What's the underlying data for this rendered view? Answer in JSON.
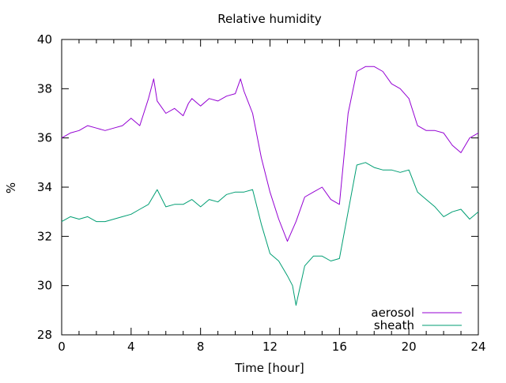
{
  "chart_data": {
    "type": "line",
    "title": "Relative humidity",
    "xlabel": "Time [hour]",
    "ylabel": "%",
    "xlim": [
      0,
      24
    ],
    "ylim": [
      28,
      40
    ],
    "x_ticks": [
      0,
      4,
      8,
      12,
      16,
      20,
      24
    ],
    "y_ticks": [
      28,
      30,
      32,
      34,
      36,
      38,
      40
    ],
    "x_tick_labels": [
      "0",
      "4",
      "8",
      "12",
      "16",
      "20",
      "24"
    ],
    "y_tick_labels": [
      "28",
      "30",
      "32",
      "34",
      "36",
      "38",
      "40"
    ],
    "grid": false,
    "legend_position": "bottom-right",
    "series": [
      {
        "name": "aerosol",
        "color": "#9400d3",
        "x": [
          0,
          0.5,
          1,
          1.5,
          2,
          2.5,
          3,
          3.5,
          4,
          4.5,
          5,
          5.3,
          5.5,
          6,
          6.5,
          7,
          7.3,
          7.5,
          8,
          8.5,
          9,
          9.5,
          10,
          10.3,
          10.5,
          11,
          11.5,
          12,
          12.5,
          13,
          13.5,
          14,
          14.5,
          15,
          15.5,
          16,
          16.5,
          17,
          17.5,
          18,
          18.5,
          19,
          19.5,
          20,
          20.5,
          21,
          21.5,
          22,
          22.5,
          23,
          23.5,
          24
        ],
        "y": [
          36.0,
          36.2,
          36.3,
          36.5,
          36.4,
          36.3,
          36.4,
          36.5,
          36.8,
          36.5,
          37.6,
          38.4,
          37.5,
          37.0,
          37.2,
          36.9,
          37.4,
          37.6,
          37.3,
          37.6,
          37.5,
          37.7,
          37.8,
          38.4,
          37.9,
          37.0,
          35.2,
          33.8,
          32.7,
          31.8,
          32.6,
          33.6,
          33.8,
          34.0,
          33.5,
          33.3,
          37.0,
          38.7,
          38.9,
          38.9,
          38.7,
          38.2,
          38.0,
          37.6,
          36.5,
          36.3,
          36.3,
          36.2,
          35.7,
          35.4,
          36.0,
          36.2
        ]
      },
      {
        "name": "sheath",
        "color": "#009e73",
        "x": [
          0,
          0.5,
          1,
          1.5,
          2,
          2.5,
          3,
          3.5,
          4,
          4.5,
          5,
          5.5,
          6,
          6.5,
          7,
          7.5,
          8,
          8.5,
          9,
          9.5,
          10,
          10.5,
          11,
          11.5,
          12,
          12.5,
          13,
          13.3,
          13.5,
          14,
          14.5,
          15,
          15.5,
          16,
          16.5,
          17,
          17.5,
          18,
          18.5,
          19,
          19.5,
          20,
          20.5,
          21,
          21.5,
          22,
          22.5,
          23,
          23.5,
          24
        ],
        "y": [
          32.6,
          32.8,
          32.7,
          32.8,
          32.6,
          32.6,
          32.7,
          32.8,
          32.9,
          33.1,
          33.3,
          33.9,
          33.2,
          33.3,
          33.3,
          33.5,
          33.2,
          33.5,
          33.4,
          33.7,
          33.8,
          33.8,
          33.9,
          32.5,
          31.3,
          31.0,
          30.4,
          30.0,
          29.2,
          30.8,
          31.2,
          31.2,
          31.0,
          31.1,
          33.0,
          34.9,
          35.0,
          34.8,
          34.7,
          34.7,
          34.6,
          34.7,
          33.8,
          33.5,
          33.2,
          32.8,
          33.0,
          33.1,
          32.7,
          33.0
        ]
      }
    ]
  }
}
